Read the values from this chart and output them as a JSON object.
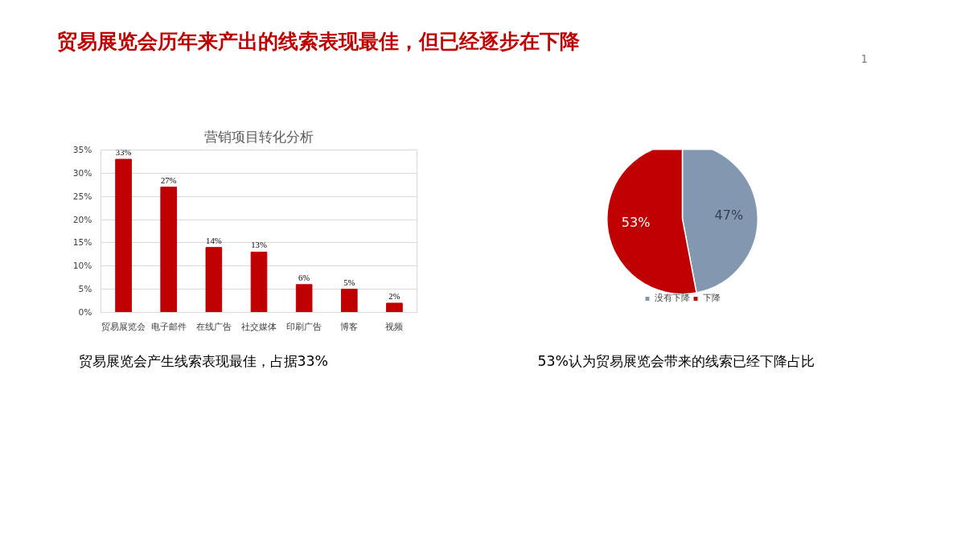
{
  "chart_data": [
    {
      "type": "bar",
      "title": "营销项目转化分析",
      "categories": [
        "贸易展览会",
        "电子邮件",
        "在线广告",
        "社交媒体",
        "印刷广告",
        "博客",
        "视频"
      ],
      "values": [
        33,
        27,
        14,
        13,
        6,
        5,
        2
      ],
      "value_labels": [
        "33%",
        "27%",
        "14%",
        "13%",
        "6%",
        "5%",
        "2%"
      ],
      "color": "#c00000",
      "ylim": [
        0,
        35
      ],
      "yticks": [
        {
          "value": 0,
          "label": "0%"
        },
        {
          "value": 5,
          "label": "5%"
        },
        {
          "value": 10,
          "label": "10%"
        },
        {
          "value": 15,
          "label": "15%"
        },
        {
          "value": 20,
          "label": "20%"
        },
        {
          "value": 25,
          "label": "25%"
        },
        {
          "value": 30,
          "label": "30%"
        },
        {
          "value": 35,
          "label": "35%"
        }
      ],
      "grid": "y",
      "annotations": [
        "贸易展览会历年来产出的线索表现最佳，但已经逐步在下降",
        "1",
        "贸易展览会产生线索表现最佳，占据33%"
      ]
    },
    {
      "type": "pie",
      "categories": [
        "没有下降",
        "下降"
      ],
      "values": [
        47,
        53
      ],
      "colors": [
        "#8497b0",
        "#c00000"
      ],
      "value_labels": [
        "47%",
        "53%"
      ],
      "legend": "bottom",
      "annotations": [
        "53%认为贸易展览会带来的线索已经下降占比"
      ]
    }
  ]
}
